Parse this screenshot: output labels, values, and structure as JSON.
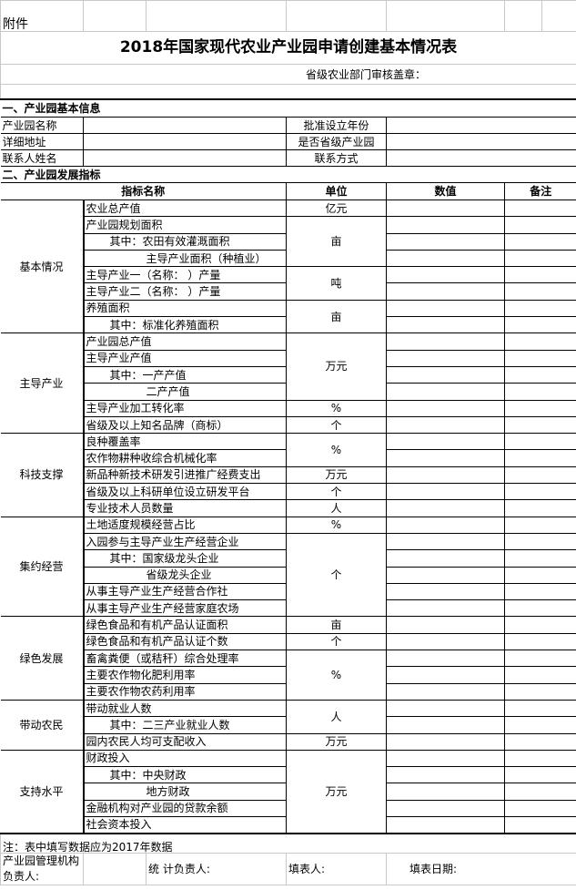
{
  "attachment_label": "附件",
  "title": "2018年国家现代农业产业园申请创建基本情况表",
  "stamp_label": "省级农业部门审核盖章：",
  "section1": {
    "heading": "一、产业园基本信息",
    "rows": [
      [
        "产业园名称",
        "批准设立年份"
      ],
      [
        "详细地址",
        "是否省级产业园"
      ],
      [
        "联系人姓名",
        "联系方式"
      ]
    ]
  },
  "section2": {
    "heading": "二、产业园发展指标",
    "columns": [
      "指标名称",
      "单位",
      "数值",
      "备注"
    ],
    "groups": [
      {
        "name": "基本情况",
        "rows": [
          [
            "农业总产值",
            0
          ],
          [
            "产业园规划面积",
            0
          ],
          [
            "其中：农田有效灌溉面积",
            1
          ],
          [
            "主导产业面积（种植业）",
            2
          ],
          [
            "主导产业一（名称：          ）产量",
            0
          ],
          [
            "主导产业二（名称：          ）产量",
            0
          ],
          [
            "养殖面积",
            0
          ],
          [
            "其中：标准化养殖面积",
            1
          ]
        ],
        "units": [
          [
            "亿元",
            1
          ],
          [
            "亩",
            3
          ],
          [
            "吨",
            2
          ],
          [
            "亩",
            2
          ]
        ]
      },
      {
        "name": "主导产业",
        "rows": [
          [
            "产业园总产值",
            0
          ],
          [
            "主导产业产值",
            0
          ],
          [
            "其中：一产产值",
            1
          ],
          [
            "二产产值",
            2
          ],
          [
            "主导产业加工转化率",
            0
          ],
          [
            "省级及以上知名品牌（商标）",
            0
          ]
        ],
        "units": [
          [
            "万元",
            4
          ],
          [
            "%",
            1
          ],
          [
            "个",
            1
          ]
        ]
      },
      {
        "name": "科技支撑",
        "rows": [
          [
            "良种覆盖率",
            0
          ],
          [
            "农作物耕种收综合机械化率",
            0
          ],
          [
            "新品种新技术研发引进推广经费支出",
            0
          ],
          [
            "省级及以上科研单位设立研发平台",
            0
          ],
          [
            "专业技术人员数量",
            0
          ]
        ],
        "units": [
          [
            "%",
            2
          ],
          [
            "万元",
            1
          ],
          [
            "个",
            1
          ],
          [
            "人",
            1
          ]
        ]
      },
      {
        "name": "集约经营",
        "rows": [
          [
            "土地适度规模经营占比",
            0
          ],
          [
            "入园参与主导产业生产经营企业",
            0
          ],
          [
            "其中：国家级龙头企业",
            1
          ],
          [
            "省级龙头企业",
            2
          ],
          [
            "从事主导产业生产经营合作社",
            0
          ],
          [
            "从事主导产业生产经营家庭农场",
            0
          ]
        ],
        "units": [
          [
            "%",
            1
          ],
          [
            "个",
            5
          ]
        ]
      },
      {
        "name": "绿色发展",
        "rows": [
          [
            "绿色食品和有机产品认证面积",
            0
          ],
          [
            "绿色食品和有机产品认证个数",
            0
          ],
          [
            "畜禽粪便（或秸秆）综合处理率",
            0
          ],
          [
            "主要农作物化肥利用率",
            0
          ],
          [
            "主要农作物农药利用率",
            0
          ]
        ],
        "units": [
          [
            "亩",
            1
          ],
          [
            "个",
            1
          ],
          [
            "%",
            3
          ]
        ]
      },
      {
        "name": "带动农民",
        "rows": [
          [
            "带动就业人数",
            0
          ],
          [
            "其中：二三产业就业人数",
            1
          ],
          [
            "园内农民人均可支配收入",
            0
          ]
        ],
        "units": [
          [
            "人",
            2
          ],
          [
            "万元",
            1
          ]
        ]
      },
      {
        "name": "支持水平",
        "rows": [
          [
            "财政投入",
            0
          ],
          [
            "其中：中央财政",
            1
          ],
          [
            "地方财政",
            2
          ],
          [
            "金融机构对产业园的贷款余额",
            0
          ],
          [
            "社会资本投入",
            0
          ]
        ],
        "units": [
          [
            "万元",
            5
          ]
        ]
      }
    ]
  },
  "note": "注：表中填写数据应为2017年数据",
  "footer": {
    "manager_label": "产业园管理机构负责人:",
    "stats_label": "统  计负责人:",
    "filler_label": "填表人:",
    "date_label": "填表日期:"
  }
}
